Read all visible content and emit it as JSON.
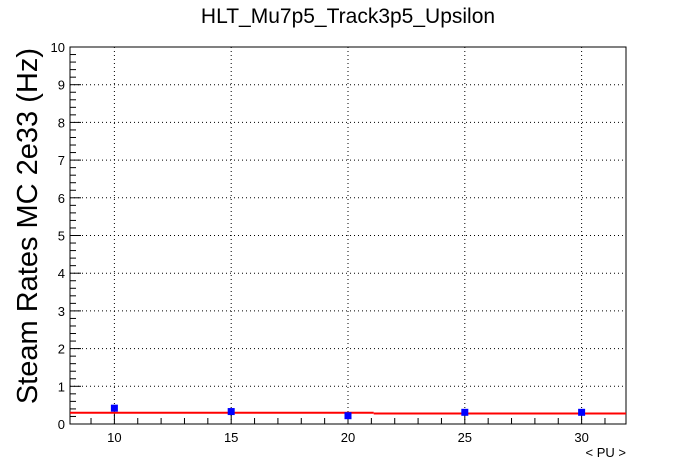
{
  "chart_data": {
    "type": "scatter",
    "title": "HLT_Mu7p5_Track3p5_Upsilon",
    "xlabel": "< PU >",
    "ylabel": "Steam Rates MC 2e33 (Hz)",
    "xlim": [
      8.1,
      31.9
    ],
    "ylim": [
      0,
      10
    ],
    "x_ticks": [
      10,
      15,
      20,
      25,
      30
    ],
    "y_ticks": [
      0,
      1,
      2,
      3,
      4,
      5,
      6,
      7,
      8,
      9,
      10
    ],
    "grid": true,
    "legend": "none",
    "series": [
      {
        "values": [
          {
            "x": 10,
            "y": 0.42,
            "err": 0.06
          },
          {
            "x": 15,
            "y": 0.33,
            "err": 0.05
          },
          {
            "x": 20,
            "y": 0.22,
            "err": 0.05
          },
          {
            "x": 25,
            "y": 0.31,
            "err": 0.05
          },
          {
            "x": 30,
            "y": 0.31,
            "err": 0.05
          }
        ],
        "color": "#0000ff"
      }
    ],
    "fit": {
      "color": "#ff0000",
      "segments": [
        {
          "x0": 8.1,
          "x1": 21.1,
          "y": 0.3
        },
        {
          "x0": 21.1,
          "x1": 31.9,
          "y": 0.28
        }
      ]
    }
  }
}
